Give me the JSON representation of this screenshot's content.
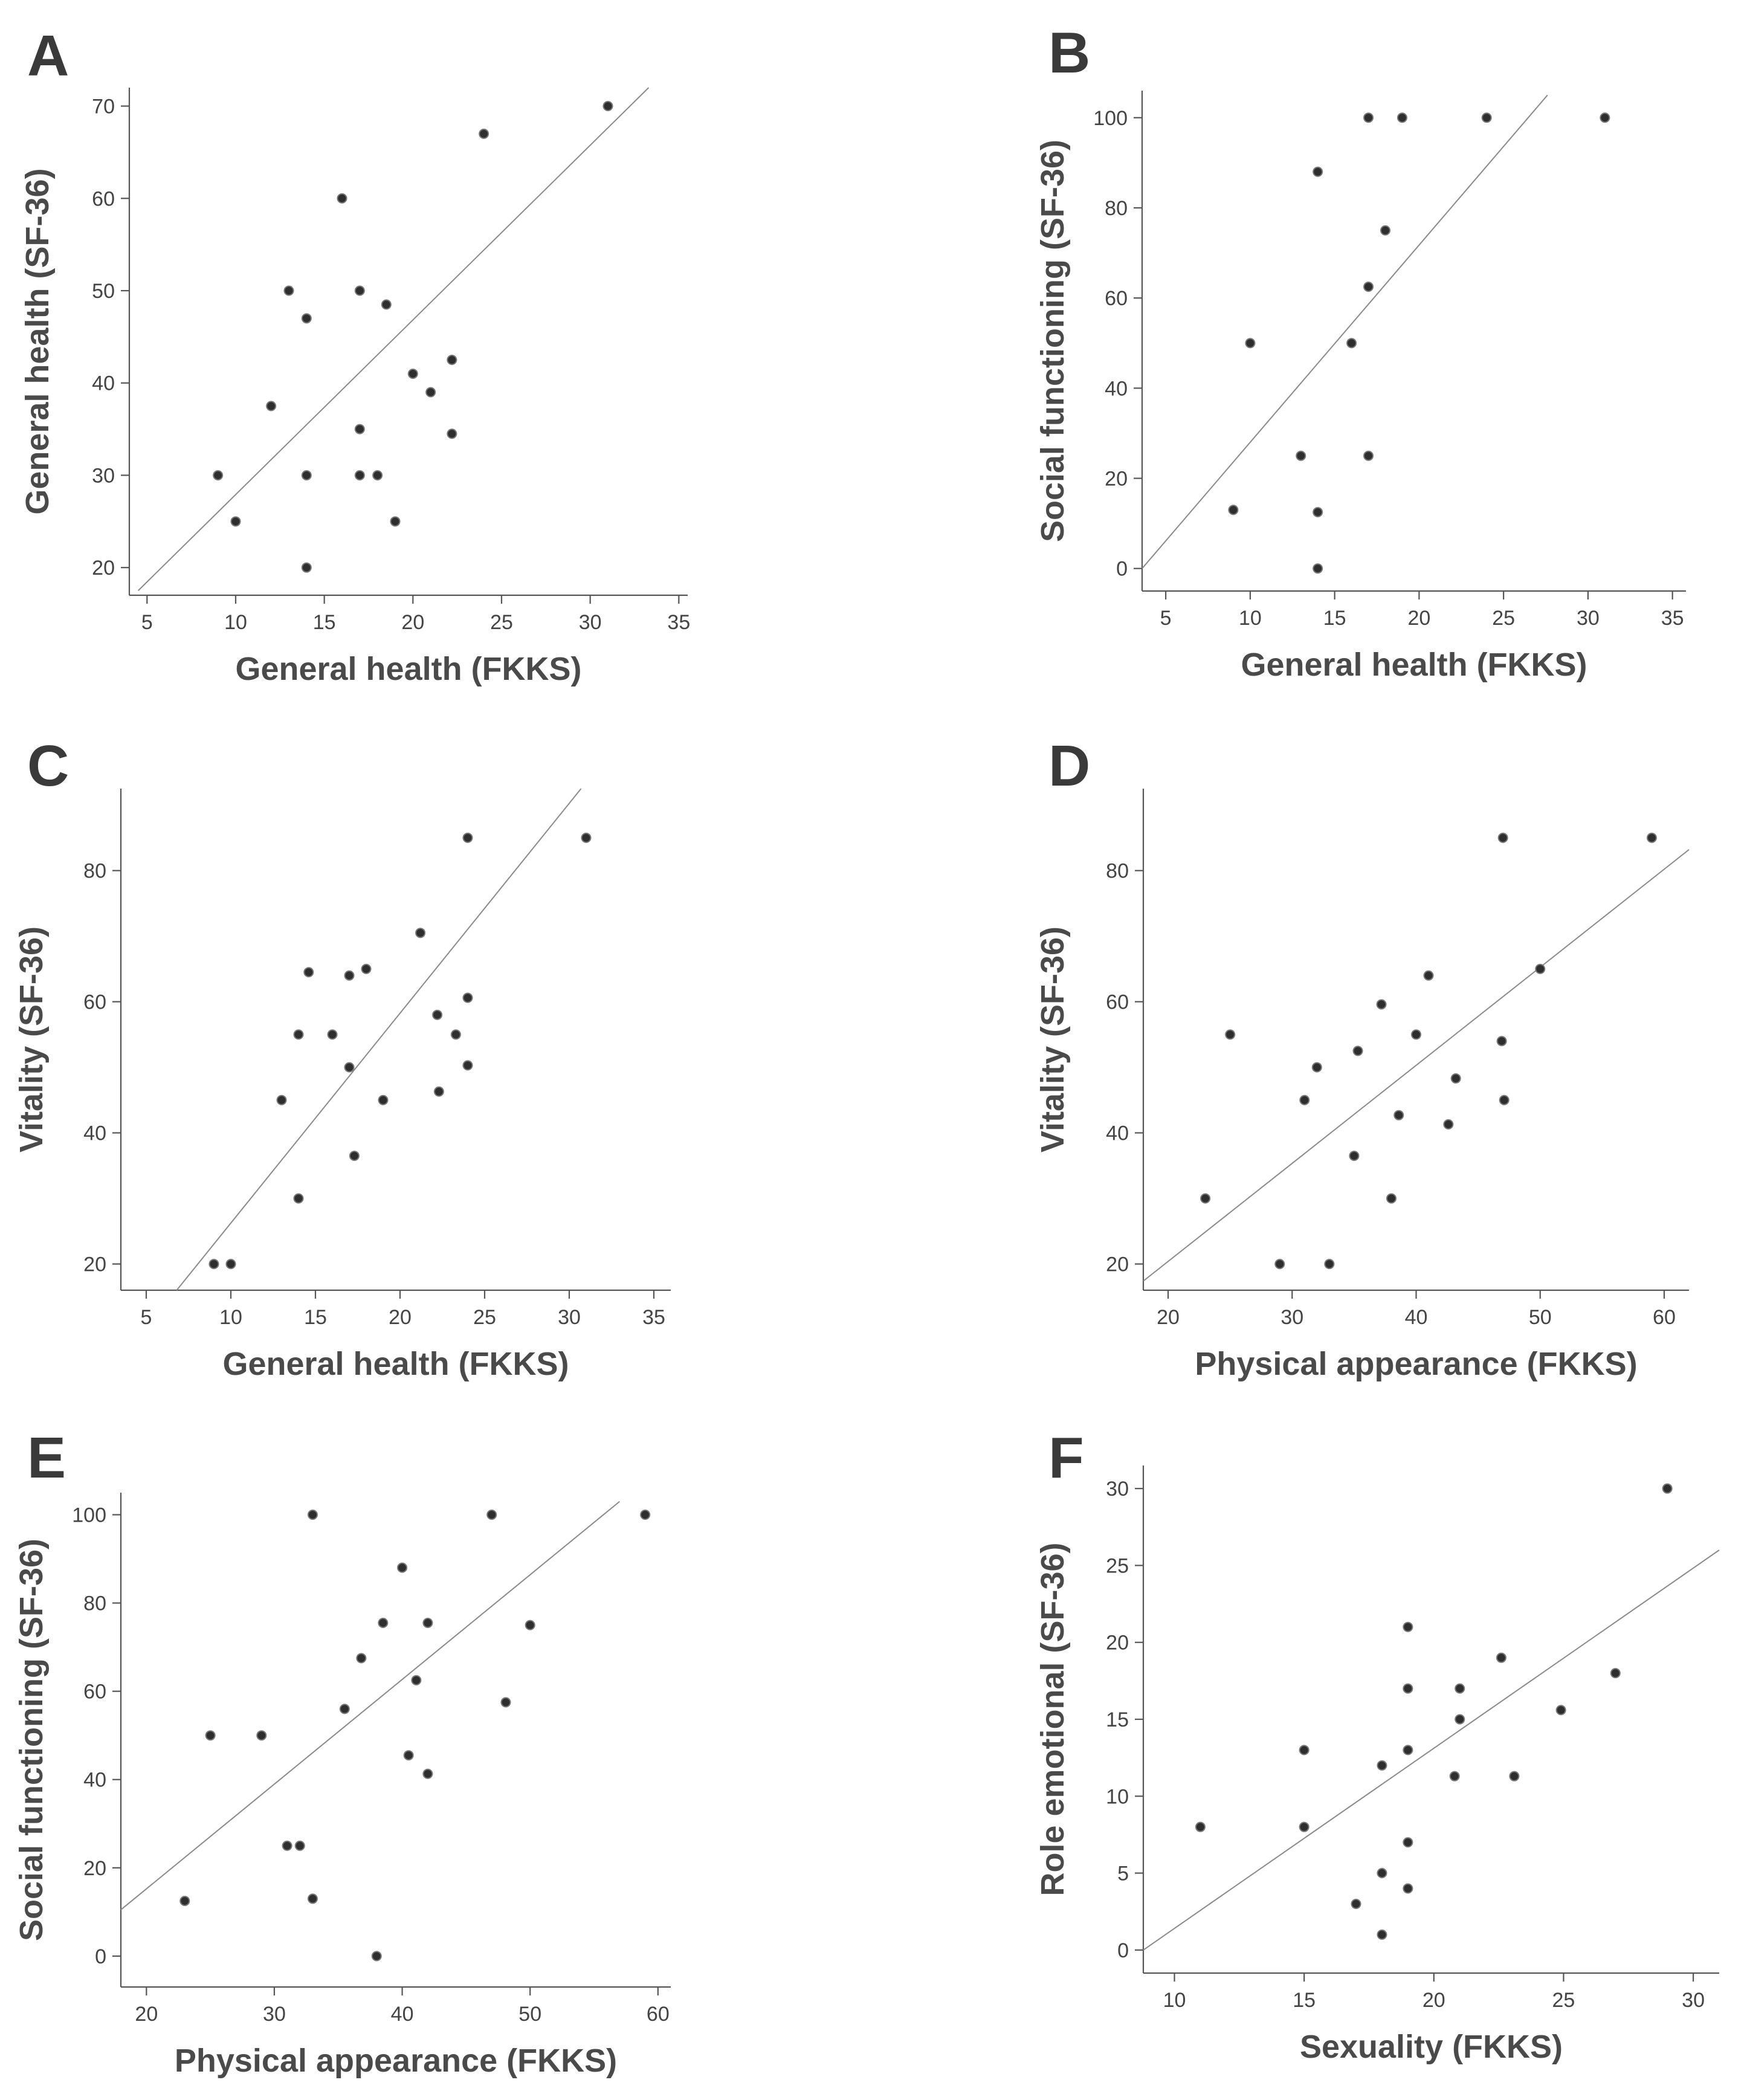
{
  "figure": {
    "panels": [
      "A",
      "B",
      "C",
      "D",
      "E",
      "F"
    ]
  },
  "chart_data": [
    {
      "panel": "A",
      "type": "scatter",
      "xlabel": "General health (FKKS)",
      "ylabel": "General health (SF-36)",
      "xlim": [
        4,
        35.5
      ],
      "ylim": [
        17,
        72
      ],
      "xticks": [
        5,
        10,
        15,
        20,
        25,
        30,
        35
      ],
      "yticks": [
        20,
        30,
        40,
        50,
        60,
        70
      ],
      "points": [
        [
          9,
          30
        ],
        [
          10,
          25
        ],
        [
          12,
          37.5
        ],
        [
          13,
          50
        ],
        [
          14,
          47
        ],
        [
          14,
          30
        ],
        [
          14,
          20
        ],
        [
          16,
          60
        ],
        [
          17,
          50
        ],
        [
          17,
          35
        ],
        [
          17,
          30
        ],
        [
          18,
          30
        ],
        [
          18.5,
          48.5
        ],
        [
          19,
          25
        ],
        [
          20,
          41
        ],
        [
          21,
          39
        ],
        [
          22.2,
          42.5
        ],
        [
          22.2,
          34.5
        ],
        [
          24,
          67
        ],
        [
          31,
          70
        ]
      ],
      "fit_line": [
        [
          4.5,
          17.5
        ],
        [
          33.3,
          72
        ]
      ]
    },
    {
      "panel": "B",
      "type": "scatter",
      "xlabel": "General health (FKKS)",
      "ylabel": "Social functioning (SF-36)",
      "xlim": [
        3.6,
        35.8
      ],
      "ylim": [
        -5,
        106
      ],
      "xticks": [
        5,
        10,
        15,
        20,
        25,
        30,
        35
      ],
      "yticks": [
        0,
        20,
        40,
        60,
        80,
        100
      ],
      "points": [
        [
          9,
          13
        ],
        [
          10,
          50
        ],
        [
          13,
          25
        ],
        [
          14,
          88
        ],
        [
          14,
          12.5
        ],
        [
          14,
          0
        ],
        [
          16,
          50
        ],
        [
          17,
          100
        ],
        [
          17,
          62.5
        ],
        [
          17,
          25
        ],
        [
          18,
          75
        ],
        [
          19,
          100
        ],
        [
          24,
          100
        ],
        [
          31,
          100
        ]
      ],
      "fit_line": [
        [
          3.6,
          0
        ],
        [
          27.6,
          105
        ]
      ]
    },
    {
      "panel": "C",
      "type": "scatter",
      "xlabel": "General health (FKKS)",
      "ylabel": "Vitality (SF-36)",
      "xlim": [
        3.5,
        36
      ],
      "ylim": [
        16,
        92.5
      ],
      "xticks": [
        5,
        10,
        15,
        20,
        25,
        30,
        35
      ],
      "yticks": [
        20,
        40,
        60,
        80
      ],
      "points": [
        [
          9,
          20
        ],
        [
          10,
          20
        ],
        [
          13,
          45
        ],
        [
          14,
          55
        ],
        [
          14,
          30
        ],
        [
          14.6,
          64.5
        ],
        [
          16,
          55
        ],
        [
          17,
          64
        ],
        [
          17,
          50
        ],
        [
          17.3,
          36.5
        ],
        [
          18,
          65
        ],
        [
          19,
          45
        ],
        [
          21.2,
          70.5
        ],
        [
          22.2,
          58
        ],
        [
          22.3,
          46.3
        ],
        [
          23.3,
          55
        ],
        [
          24,
          85
        ],
        [
          24,
          60.6
        ],
        [
          24,
          50.3
        ],
        [
          31,
          85
        ]
      ],
      "fit_line": [
        [
          6.8,
          16
        ],
        [
          30.7,
          92.5
        ]
      ]
    },
    {
      "panel": "D",
      "type": "scatter",
      "xlabel": "Physical appearance (FKKS)",
      "ylabel": "Vitality (SF-36)",
      "xlim": [
        18,
        62
      ],
      "ylim": [
        16,
        92.5
      ],
      "xticks": [
        20,
        30,
        40,
        50,
        60
      ],
      "yticks": [
        20,
        40,
        60,
        80
      ],
      "points": [
        [
          23,
          30
        ],
        [
          25,
          55
        ],
        [
          29,
          20
        ],
        [
          31,
          45
        ],
        [
          32,
          50
        ],
        [
          33,
          20
        ],
        [
          35,
          36.5
        ],
        [
          35.3,
          52.5
        ],
        [
          37.2,
          59.6
        ],
        [
          38,
          30
        ],
        [
          38.6,
          42.7
        ],
        [
          40,
          55
        ],
        [
          41,
          64
        ],
        [
          42.6,
          41.3
        ],
        [
          43.2,
          48.3
        ],
        [
          46.9,
          54
        ],
        [
          47,
          85
        ],
        [
          47.1,
          45
        ],
        [
          50,
          65
        ],
        [
          59,
          85
        ]
      ],
      "fit_line": [
        [
          18,
          17.4
        ],
        [
          62,
          83.2
        ]
      ]
    },
    {
      "panel": "E",
      "type": "scatter",
      "xlabel": "Physical appearance (FKKS)",
      "ylabel": "Social functioning (SF-36)",
      "xlim": [
        18,
        61
      ],
      "ylim": [
        -7,
        105
      ],
      "xticks": [
        20,
        30,
        40,
        50,
        60
      ],
      "yticks": [
        0,
        20,
        40,
        60,
        80,
        100
      ],
      "points": [
        [
          23,
          12.5
        ],
        [
          25,
          50
        ],
        [
          29,
          50
        ],
        [
          31,
          25
        ],
        [
          32,
          25
        ],
        [
          33,
          100
        ],
        [
          33,
          13
        ],
        [
          35.5,
          56
        ],
        [
          36.8,
          67.5
        ],
        [
          38,
          0
        ],
        [
          38.5,
          75.5
        ],
        [
          40,
          88
        ],
        [
          40.5,
          45.5
        ],
        [
          41.1,
          62.5
        ],
        [
          42,
          75.5
        ],
        [
          42,
          41.3
        ],
        [
          47,
          100
        ],
        [
          48.1,
          57.5
        ],
        [
          50,
          75
        ],
        [
          59,
          100
        ]
      ],
      "fit_line": [
        [
          18,
          10.5
        ],
        [
          57,
          103
        ]
      ]
    },
    {
      "panel": "F",
      "type": "scatter",
      "xlabel": "Sexuality (FKKS)",
      "ylabel": "Role emotional (SF-36)",
      "xlim": [
        8.8,
        31
      ],
      "ylim": [
        -1.5,
        31.5
      ],
      "xticks": [
        10,
        15,
        20,
        25,
        30
      ],
      "yticks": [
        0,
        5,
        10,
        15,
        20,
        25,
        30
      ],
      "points": [
        [
          11,
          8
        ],
        [
          15,
          13
        ],
        [
          15,
          8
        ],
        [
          17,
          3
        ],
        [
          18,
          12
        ],
        [
          18,
          5
        ],
        [
          18,
          1
        ],
        [
          19,
          21
        ],
        [
          19,
          17
        ],
        [
          19,
          13
        ],
        [
          19,
          7
        ],
        [
          19,
          4
        ],
        [
          20.8,
          11.3
        ],
        [
          21,
          17
        ],
        [
          21,
          15
        ],
        [
          22.6,
          19
        ],
        [
          23.1,
          11.3
        ],
        [
          24.9,
          15.6
        ],
        [
          27,
          18
        ],
        [
          29,
          30
        ]
      ],
      "fit_line": [
        [
          8.8,
          0
        ],
        [
          31,
          26
        ]
      ]
    }
  ]
}
